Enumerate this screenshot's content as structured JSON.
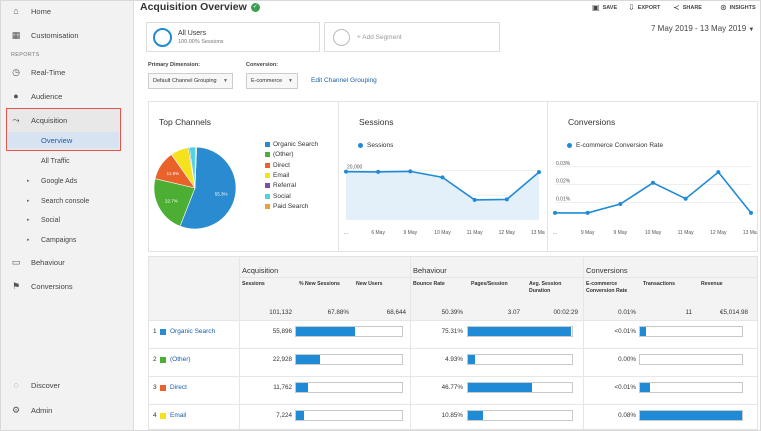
{
  "header": {
    "title": "Acquisition Overview",
    "save": "SAVE",
    "export": "EXPORT",
    "share": "SHARE",
    "insights": "INSIGHTS",
    "date_range": "7 May 2019 - 13 May 2019"
  },
  "sidebar": {
    "home": "Home",
    "customisation": "Customisation",
    "reports_label": "REPORTS",
    "realtime": "Real-Time",
    "audience": "Audience",
    "acquisition": "Acquisition",
    "overview": "Overview",
    "sub_items": [
      "All Traffic",
      "Google Ads",
      "Search console",
      "Social",
      "Campaigns"
    ],
    "behaviour": "Behaviour",
    "conversions": "Conversions",
    "discover": "Discover",
    "admin": "Admin"
  },
  "segment": {
    "name": "All Users",
    "sub": "100.00% Sessions",
    "add": "+ Add Segment"
  },
  "controls": {
    "primary_label": "Primary Dimension:",
    "primary_value": "Default Channel Grouping",
    "conversion_label": "Conversion:",
    "conversion_value": "E-commerce",
    "edit_link": "Edit Channel Grouping"
  },
  "top_channels": {
    "title": "Top Channels",
    "legend": [
      "Organic Search",
      "(Other)",
      "Direct",
      "Email",
      "Referral",
      "Social",
      "Paid Search"
    ],
    "colors": [
      "#2b8bd0",
      "#4caf34",
      "#e8622a",
      "#f5e21d",
      "#7b4fa0",
      "#4fd3e3",
      "#e9a13b"
    ],
    "slice_labels": [
      "55.3%",
      "22.7%",
      "11.6%"
    ]
  },
  "sessions_chart": {
    "title": "Sessions",
    "legend": "Sessions",
    "y_labels": [
      "20,000",
      "10,000"
    ],
    "x_labels": [
      "...",
      "6 May",
      "9 May",
      "10 May",
      "11 May",
      "12 May",
      "13 May"
    ]
  },
  "conversions_chart": {
    "title": "Conversions",
    "legend": "E-commerce Conversion Rate",
    "y_labels": [
      "0.03%",
      "0.02%",
      "0.01%"
    ],
    "x_labels": [
      "...",
      "9 May",
      "9 May",
      "10 May",
      "11 May",
      "12 May",
      "13 May"
    ]
  },
  "chart_data": [
    {
      "type": "pie",
      "title": "Top Channels",
      "categories": [
        "Organic Search",
        "(Other)",
        "Direct",
        "Email",
        "Referral",
        "Social",
        "Paid Search"
      ],
      "values": [
        55.3,
        22.7,
        11.6,
        7.1,
        0.5,
        2.3,
        0.5
      ]
    },
    {
      "type": "area",
      "title": "Sessions",
      "x": [
        "...",
        "6 May",
        "9 May",
        "10 May",
        "11 May",
        "12 May",
        "13 May"
      ],
      "values": [
        19500,
        19400,
        19600,
        17200,
        8100,
        8300,
        19300
      ],
      "ylim": [
        0,
        25000
      ]
    },
    {
      "type": "line",
      "title": "Conversions",
      "x": [
        "...",
        "9 May",
        "9 May",
        "10 May",
        "11 May",
        "12 May",
        "13 May"
      ],
      "values": [
        0.004,
        0.004,
        0.009,
        0.021,
        0.012,
        0.027,
        0.004
      ],
      "ylim": [
        0,
        0.035
      ]
    }
  ],
  "table": {
    "groups": [
      "Acquisition",
      "Behaviour",
      "Conversions"
    ],
    "headers": [
      "Sessions",
      "% New Sessions",
      "New Users",
      "Bounce Rate",
      "Pages/Session",
      "Avg. Session Duration",
      "E-commerce Conversion Rate",
      "Transactions",
      "Revenue"
    ],
    "totals": [
      "101,132",
      "67.88%",
      "68,644",
      "50.39%",
      "3.07",
      "00:02:29",
      "0.01%",
      "11",
      "€5,014.98"
    ],
    "rows": [
      {
        "num": "1",
        "name": "Organic Search",
        "color": "#2b8bd0",
        "sessions": "55,896",
        "sessions_bar": 0.553,
        "bounce": "75.31%",
        "bounce_bar": 0.99,
        "conv": "<0.01%",
        "conv_bar": 0.06
      },
      {
        "num": "2",
        "name": "(Other)",
        "color": "#4caf34",
        "sessions": "22,928",
        "sessions_bar": 0.227,
        "bounce": "4.93%",
        "bounce_bar": 0.065,
        "conv": "0.00%",
        "conv_bar": 0
      },
      {
        "num": "3",
        "name": "Direct",
        "color": "#e8622a",
        "sessions": "11,762",
        "sessions_bar": 0.116,
        "bounce": "46.77%",
        "bounce_bar": 0.62,
        "conv": "<0.01%",
        "conv_bar": 0.1
      },
      {
        "num": "4",
        "name": "Email",
        "color": "#f5e21d",
        "sessions": "7,224",
        "sessions_bar": 0.071,
        "bounce": "10.85%",
        "bounce_bar": 0.145,
        "conv": "0.08%",
        "conv_bar": 1.0
      }
    ]
  }
}
